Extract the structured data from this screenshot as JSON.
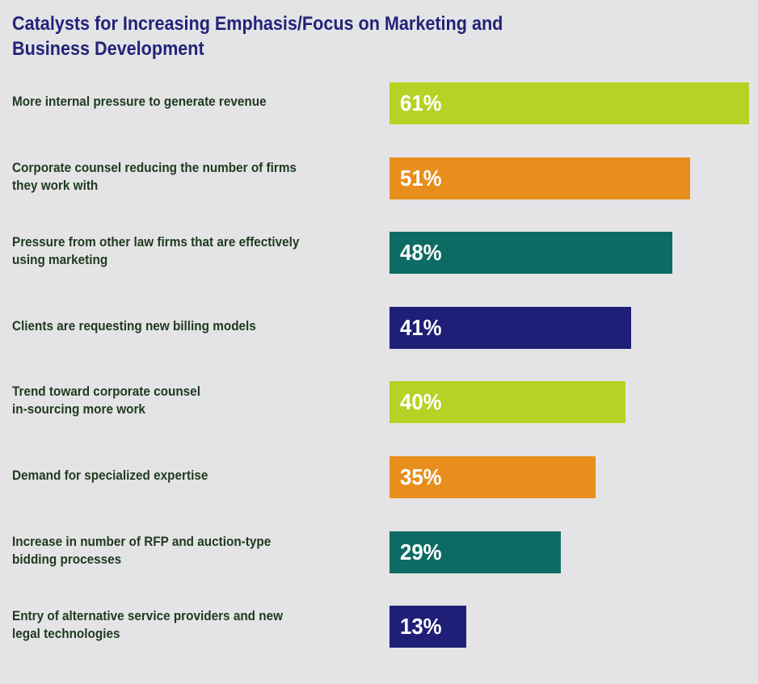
{
  "chart_data": {
    "type": "bar",
    "orientation": "horizontal",
    "title_lines": [
      "Catalysts for Increasing Emphasis/Focus on Marketing and",
      "Business Development"
    ],
    "categories": [
      [
        "More internal pressure to generate revenue"
      ],
      [
        "Corporate counsel reducing the number of firms",
        "they work with"
      ],
      [
        "Pressure from other law firms that are effectively",
        "using marketing"
      ],
      [
        "Clients are requesting new billing models"
      ],
      [
        "Trend toward corporate counsel",
        "in-sourcing more work"
      ],
      [
        "Demand for specialized expertise"
      ],
      [
        "Increase in number of RFP and auction-type",
        "bidding processes"
      ],
      [
        "Entry of alternative service providers and new",
        "legal technologies"
      ]
    ],
    "values": [
      61,
      51,
      48,
      41,
      40,
      35,
      29,
      13
    ],
    "value_labels": [
      "61%",
      "51%",
      "48%",
      "41%",
      "40%",
      "35%",
      "29%",
      "13%"
    ],
    "unit": "%",
    "bar_colors": [
      "#b5d325",
      "#e88e1d",
      "#0e6b63",
      "#1f1f77",
      "#b5d325",
      "#e88e1d",
      "#0e6b63",
      "#1f1f77"
    ],
    "legend": "none",
    "grid": false
  }
}
